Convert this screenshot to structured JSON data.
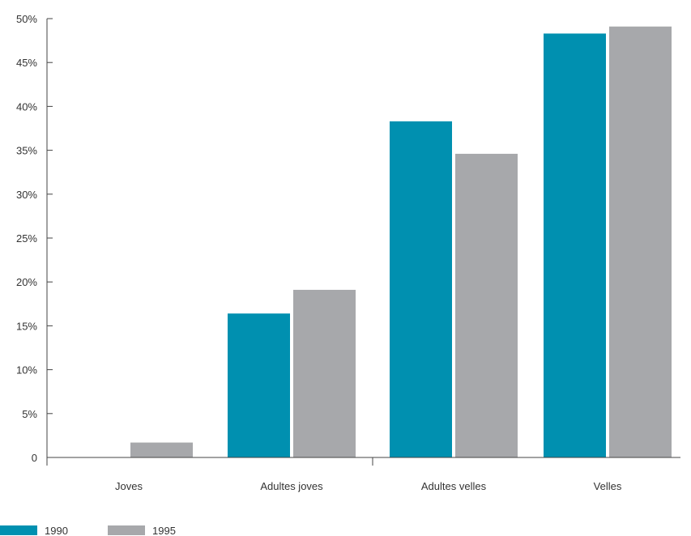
{
  "chart_data": {
    "type": "bar",
    "title": "",
    "xlabel": "",
    "ylabel": "",
    "categories": [
      "Joves",
      "Adultes joves",
      "Adultes velles",
      "Velles"
    ],
    "series": [
      {
        "name": "1990",
        "color": "#0090b0",
        "values": [
          0,
          16.4,
          38.3,
          48.3
        ]
      },
      {
        "name": "1995",
        "color": "#a7a8ab",
        "values": [
          1.7,
          19.1,
          34.6,
          49.1
        ]
      }
    ],
    "ylim": [
      0,
      50
    ],
    "yticks": [
      0,
      5,
      10,
      15,
      20,
      25,
      30,
      35,
      40,
      45,
      50
    ],
    "ytick_labels": [
      "0",
      "5%",
      "10%",
      "15%",
      "20%",
      "25%",
      "30%",
      "35%",
      "40%",
      "45%",
      "50%"
    ],
    "grid": false,
    "legend_position": "bottom-left"
  }
}
